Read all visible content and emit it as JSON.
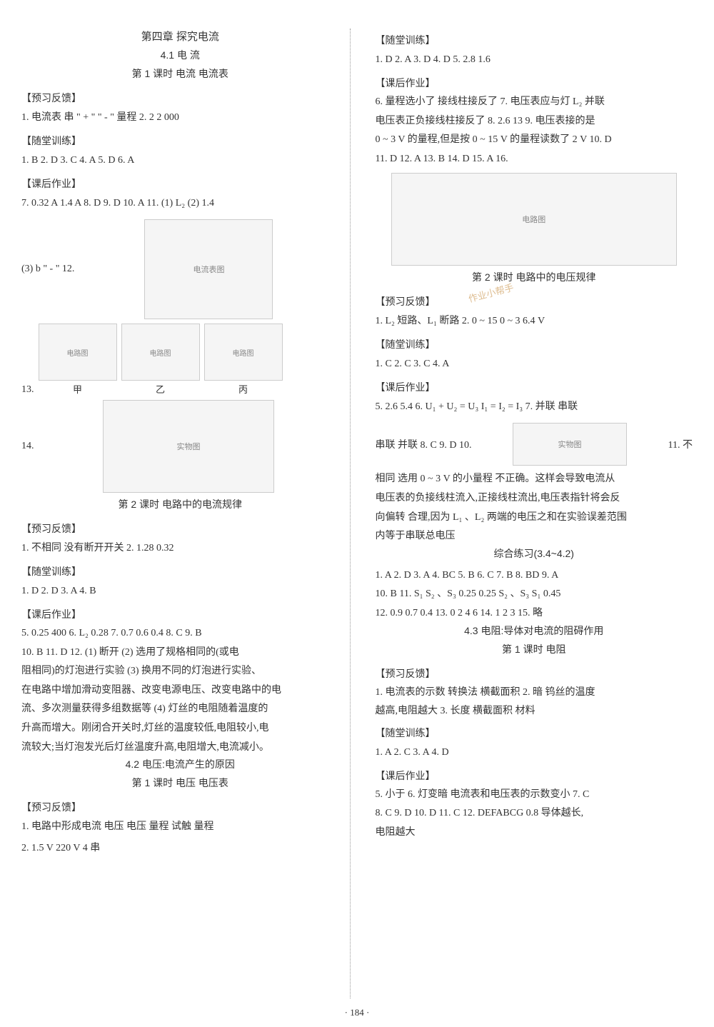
{
  "page_number": "· 184 ·",
  "watermark_text": "作业小帮手",
  "left": {
    "chapter": "第四章  探究电流",
    "s41": "4.1  电  流",
    "s41_sub1": "第 1 课时  电流  电流表",
    "h_yuxi": "【预习反馈】",
    "h_suitang": "【随堂训练】",
    "h_kehou": "【课后作业】",
    "s41_yuxi_1": "1. 电流表  串  \" + \"  \" - \"  量程  2. 2  2 000",
    "s41_suitang_1": "1. B  2. D  3. C  4. A  5. D  6. A",
    "s41_kehou_1": "7. 0.32 A  1.4 A  8. D  9. D  10. A  11. (1) L₂  (2) 1.4",
    "s41_kehou_2": "(3) b  \" - \"  12.",
    "s41_kehou_13": "13.",
    "label_jia": "甲",
    "label_yi": "乙",
    "label_bing": "丙",
    "s41_kehou_14": "14.",
    "s41_sub2": "第 2 课时  电路中的电流规律",
    "s41b_yuxi_1": "1. 不相同  没有断开开关  2. 1.28  0.32",
    "s41b_suitang_1": "1. D  2. D  3. A  4. B",
    "s41b_kehou_1": "5. 0.25  400  6. L₂  0.28  7. 0.7  0.6  0.4  8. C  9. B",
    "s41b_kehou_2": "  10. B  11. D  12. (1) 断开  (2) 选用了规格相同的(或电",
    "s41b_kehou_3": "阻相同)的灯泡进行实验  (3) 换用不同的灯泡进行实验、",
    "s41b_kehou_4": "在电路中增加滑动变阻器、改变电源电压、改变电路中的电",
    "s41b_kehou_5": "流、多次测量获得多组数据等  (4) 灯丝的电阻随着温度的",
    "s41b_kehou_6": "升高而增大。刚闭合开关时,灯丝的温度较低,电阻较小,电",
    "s41b_kehou_7": "流较大;当灯泡发光后灯丝温度升高,电阻增大,电流减小。",
    "s42": "4.2  电压:电流产生的原因",
    "s42_sub1": "第 1 课时  电压  电压表",
    "s42_yuxi_1": "1. 电路中形成电流  电压  电压  量程  试触  量程",
    "s42_yuxi_2": "2. 1.5 V  220 V  4  串"
  },
  "right": {
    "h_suitang": "【随堂训练】",
    "h_kehou": "【课后作业】",
    "h_yuxi": "【预习反馈】",
    "r1_suitang": "1. D  2. A  3. D  4. D  5. 2.8  1.6",
    "r1_kehou_1": "6. 量程选小了  接线柱接反了  7. 电压表应与灯 L₂ 并联",
    "r1_kehou_2": "电压表正负接线柱接反了  8. 2.6  13  9. 电压表接的是",
    "r1_kehou_3": "0 ~ 3 V 的量程,但是按 0 ~ 15 V 的量程读数了  2 V  10. D",
    "r1_kehou_4": "  11. D  12. A  13. B  14. D  15. A  16.",
    "s42_sub2": "第 2 课时  电路中的电压规律",
    "r2_yuxi_1": "1. L₂ 短路、L₁ 断路  2. 0 ~ 15  0 ~ 3  6.4 V",
    "r2_suitang_1": "1. C  2. C  3. C  4. A",
    "r2_kehou_1": "5. 2.6  5.4  6. U₁ + U₂ = U₃  I₁ = I₂ = I₃  7. 并联  串联",
    "r2_kehou_2a": "串联  并联  8. C  9. D  10.",
    "r2_kehou_2b": "11. 不",
    "r2_kehou_3": "相同  选用 0 ~ 3 V 的小量程  不正确。这样会导致电流从",
    "r2_kehou_4": "电压表的负接线柱流入,正接线柱流出,电压表指针将会反",
    "r2_kehou_5": "向偏转  合理,因为 L₁ 、L₂ 两端的电压之和在实验误差范围",
    "r2_kehou_6": "内等于串联总电压",
    "zonghe_title": "综合练习(3.4~4.2)",
    "zonghe_1": "1. A  2. D  3. A  4. BC  5. B  6. C  7. B  8. BD  9. A",
    "zonghe_2": "10. B  11. S₁  S₂ 、S₃  0.25  0.25  S₂ 、S₃  S₁  0.45",
    "zonghe_3": "12. 0.9  0.7  0.4  13. 0  2  4  6  14. 1  2  3  15. 略",
    "s43": "4.3  电阻:导体对电流的阻碍作用",
    "s43_sub1": "第 1 课时  电阻",
    "s43_yuxi_1": "1. 电流表的示数  转换法  横截面积  2. 暗  钨丝的温度",
    "s43_yuxi_2": "越高,电阻越大  3. 长度  横截面积  材料",
    "s43_suitang_1": "1. A  2. C  3. A  4. D",
    "s43_kehou_1": "5. 小于  6. 灯变暗  电流表和电压表的示数变小  7. C",
    "s43_kehou_2": "8. C  9. D  10. D  11. C  12. DEFABCG  0.8  导体越长,",
    "s43_kehou_3": "电阻越大"
  },
  "img_labels": {
    "meter": "电流表图",
    "circuit": "电路图",
    "photo": "实物图"
  }
}
